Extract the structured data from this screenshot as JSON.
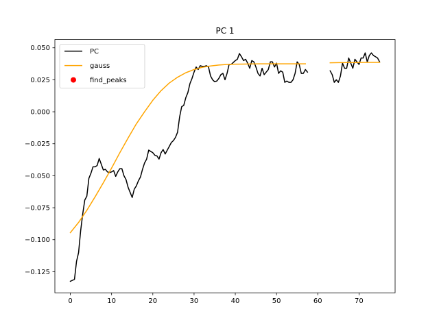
{
  "chart_data": {
    "type": "line",
    "title": "PC 1",
    "xlabel": "",
    "ylabel": "",
    "xlim": [
      -3.75,
      78.75
    ],
    "ylim": [
      -0.1415,
      0.0565
    ],
    "x_ticks": [
      0,
      10,
      20,
      30,
      40,
      50,
      60,
      70
    ],
    "y_ticks": [
      -0.125,
      -0.1,
      -0.075,
      -0.05,
      -0.025,
      0.0,
      0.025,
      0.05
    ],
    "y_tick_labels": [
      "−0.125",
      "−0.100",
      "−0.075",
      "−0.050",
      "−0.025",
      "0.000",
      "0.025",
      "0.050"
    ],
    "grid": false,
    "legend_position": "top-left",
    "series": [
      {
        "name": "PC",
        "kind": "line",
        "color": "#000000",
        "points": [
          [
            0,
            -0.1325
          ],
          [
            1,
            -0.131
          ],
          [
            1.5,
            -0.117
          ],
          [
            2,
            -0.11
          ],
          [
            2.5,
            -0.093
          ],
          [
            3,
            -0.08
          ],
          [
            3.5,
            -0.069
          ],
          [
            4,
            -0.066
          ],
          [
            4.5,
            -0.052
          ],
          [
            5,
            -0.048
          ],
          [
            5.5,
            -0.043
          ],
          [
            6,
            -0.043
          ],
          [
            6.5,
            -0.042
          ],
          [
            7,
            -0.0365
          ],
          [
            7.5,
            -0.041
          ],
          [
            8,
            -0.0455
          ],
          [
            8.5,
            -0.045
          ],
          [
            9,
            -0.047
          ],
          [
            9.5,
            -0.0475
          ],
          [
            10,
            -0.047
          ],
          [
            10.5,
            -0.046
          ],
          [
            11,
            -0.0505
          ],
          [
            11.5,
            -0.047
          ],
          [
            12,
            -0.0445
          ],
          [
            12.5,
            -0.0445
          ],
          [
            13,
            -0.05
          ],
          [
            13.5,
            -0.053
          ],
          [
            14,
            -0.059
          ],
          [
            14.5,
            -0.063
          ],
          [
            15,
            -0.067
          ],
          [
            15.5,
            -0.0605
          ],
          [
            16,
            -0.058
          ],
          [
            16.5,
            -0.054
          ],
          [
            17,
            -0.051
          ],
          [
            17.5,
            -0.045
          ],
          [
            18,
            -0.04
          ],
          [
            18.5,
            -0.037
          ],
          [
            19,
            -0.03
          ],
          [
            19.5,
            -0.031
          ],
          [
            20,
            -0.032
          ],
          [
            20.5,
            -0.034
          ],
          [
            21,
            -0.0345
          ],
          [
            21.5,
            -0.037
          ],
          [
            22,
            -0.032
          ],
          [
            22.5,
            -0.0295
          ],
          [
            23,
            -0.033
          ],
          [
            23.5,
            -0.03
          ],
          [
            24,
            -0.027
          ],
          [
            24.5,
            -0.024
          ],
          [
            25,
            -0.0225
          ],
          [
            25.5,
            -0.02
          ],
          [
            26,
            -0.016
          ],
          [
            26.5,
            -0.004
          ],
          [
            27,
            0.004
          ],
          [
            27.5,
            0.005
          ],
          [
            28,
            0.011
          ],
          [
            28.5,
            0.015
          ],
          [
            29,
            0.022
          ],
          [
            29.5,
            0.026
          ],
          [
            30,
            0.031
          ],
          [
            30.5,
            0.035
          ],
          [
            31,
            0.033
          ],
          [
            31.5,
            0.036
          ],
          [
            32,
            0.0355
          ],
          [
            32.5,
            0.0355
          ],
          [
            33,
            0.036
          ],
          [
            33.5,
            0.035
          ],
          [
            34,
            0.028
          ],
          [
            34.5,
            0.025
          ],
          [
            35,
            0.0235
          ],
          [
            35.5,
            0.024
          ],
          [
            36,
            0.026
          ],
          [
            36.5,
            0.029
          ],
          [
            37,
            0.03
          ],
          [
            37.5,
            0.025
          ],
          [
            38,
            0.03
          ],
          [
            38.5,
            0.037
          ],
          [
            39,
            0.037
          ],
          [
            39.5,
            0.0385
          ],
          [
            40,
            0.04
          ],
          [
            40.5,
            0.041
          ],
          [
            41,
            0.0455
          ],
          [
            41.5,
            0.043
          ],
          [
            42,
            0.04
          ],
          [
            42.5,
            0.041
          ],
          [
            43,
            0.038
          ],
          [
            43.5,
            0.034
          ],
          [
            44,
            0.04
          ],
          [
            44.5,
            0.039
          ],
          [
            45,
            0.035
          ],
          [
            45.5,
            0.03
          ],
          [
            46,
            0.028
          ],
          [
            46.5,
            0.034
          ],
          [
            47,
            0.029
          ],
          [
            47.5,
            0.031
          ],
          [
            48,
            0.033
          ],
          [
            48.5,
            0.039
          ],
          [
            49,
            0.039
          ],
          [
            49.5,
            0.035
          ],
          [
            50,
            0.038
          ],
          [
            50.5,
            0.03
          ],
          [
            51,
            0.032
          ],
          [
            51.5,
            0.031
          ],
          [
            52,
            0.023
          ],
          [
            52.5,
            0.024
          ],
          [
            53,
            0.023
          ],
          [
            53.5,
            0.023
          ],
          [
            54,
            0.025
          ],
          [
            54.5,
            0.03
          ],
          [
            55,
            0.039
          ],
          [
            55.5,
            0.037
          ],
          [
            56,
            0.03
          ],
          [
            56.5,
            0.03
          ],
          [
            57,
            0.033
          ],
          [
            57.5,
            0.031
          ],
          null,
          [
            63,
            0.032
          ],
          [
            63.5,
            0.029
          ],
          [
            64,
            0.023
          ],
          [
            64.5,
            0.025
          ],
          [
            65,
            0.023
          ],
          [
            65.5,
            0.028
          ],
          [
            66,
            0.038
          ],
          [
            66.5,
            0.034
          ],
          [
            67,
            0.034
          ],
          [
            67.5,
            0.042
          ],
          [
            68,
            0.038
          ],
          [
            68.5,
            0.034
          ],
          [
            69,
            0.041
          ],
          [
            69.5,
            0.039
          ],
          [
            70,
            0.037
          ],
          [
            70.5,
            0.042
          ],
          [
            71,
            0.042
          ],
          [
            71.5,
            0.046
          ],
          [
            72,
            0.039
          ],
          [
            72.5,
            0.044
          ],
          [
            73,
            0.046
          ],
          [
            73.5,
            0.044
          ],
          [
            74,
            0.043
          ],
          [
            74.5,
            0.042
          ],
          [
            75,
            0.039
          ]
        ]
      },
      {
        "name": "gauss",
        "kind": "line",
        "color": "#FFA500",
        "points": [
          [
            0,
            -0.0945
          ],
          [
            2,
            -0.0865
          ],
          [
            4,
            -0.077
          ],
          [
            6,
            -0.0665
          ],
          [
            8,
            -0.0555
          ],
          [
            10,
            -0.044
          ],
          [
            12,
            -0.032
          ],
          [
            14,
            -0.0205
          ],
          [
            16,
            -0.0095
          ],
          [
            18,
            0.0
          ],
          [
            20,
            0.009
          ],
          [
            22,
            0.0165
          ],
          [
            24,
            0.0225
          ],
          [
            26,
            0.027
          ],
          [
            28,
            0.0305
          ],
          [
            30,
            0.033
          ],
          [
            32,
            0.0348
          ],
          [
            34,
            0.0358
          ],
          [
            36,
            0.0365
          ],
          [
            38,
            0.037
          ],
          [
            40,
            0.0372
          ],
          [
            42,
            0.0373
          ],
          [
            44,
            0.0374
          ],
          [
            46,
            0.0375
          ],
          [
            48,
            0.0375
          ],
          [
            50,
            0.0375
          ],
          [
            52,
            0.0375
          ],
          [
            54,
            0.0375
          ],
          [
            56,
            0.0375
          ],
          [
            57,
            0.0375
          ],
          null,
          [
            63,
            0.0383
          ],
          [
            65,
            0.0384
          ],
          [
            67,
            0.0385
          ],
          [
            69,
            0.0385
          ],
          [
            71,
            0.0386
          ],
          [
            73,
            0.0386
          ],
          [
            75,
            0.0386
          ]
        ]
      },
      {
        "name": "find_peaks",
        "kind": "scatter",
        "color": "#FF0000",
        "points": []
      }
    ]
  }
}
